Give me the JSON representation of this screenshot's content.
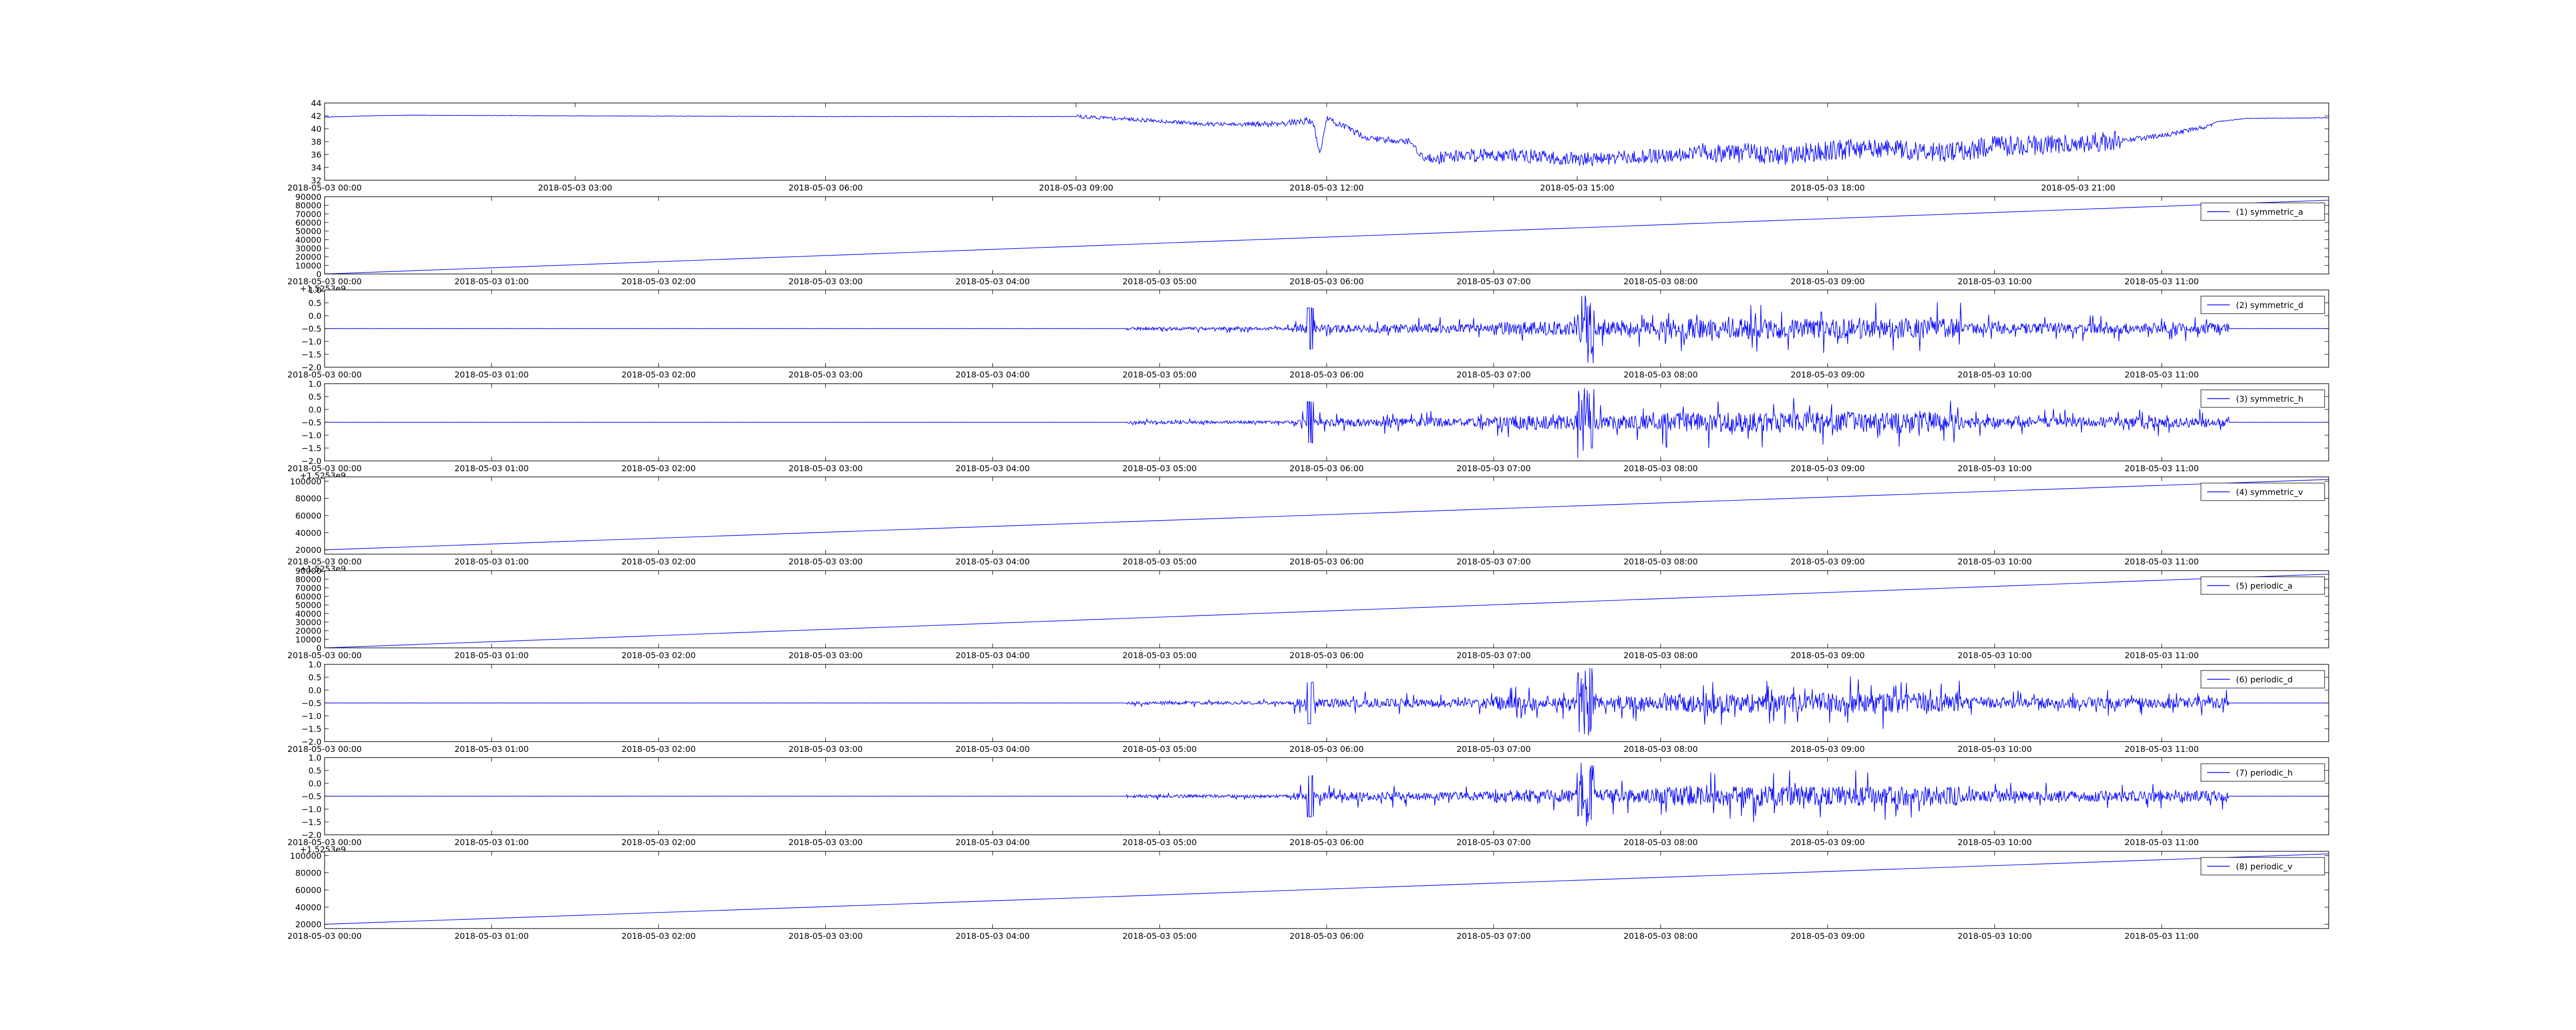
{
  "figure": {
    "line_color": "#0000ff",
    "axes_color": "#000000",
    "background": "#ffffff"
  },
  "chart_data": [
    {
      "type": "line",
      "id": "p0",
      "legend": null,
      "signal": "level",
      "start": 42,
      "end": 42,
      "xlim": [
        "2018-05-03 00:00",
        "2018-05-04 00:00"
      ],
      "ylim": [
        32,
        44
      ],
      "yticks": [
        "32",
        "34",
        "36",
        "38",
        "40",
        "42",
        "44"
      ],
      "xticks": [
        "2018-05-03 00:00",
        "2018-05-03 03:00",
        "2018-05-03 06:00",
        "2018-05-03 09:00",
        "2018-05-03 12:00",
        "2018-05-03 15:00",
        "2018-05-03 18:00",
        "2018-05-03 21:00"
      ],
      "offset_text": "",
      "series": [
        {
          "x": [
            "2018-05-03 00:00",
            "2018-05-03 00:30",
            "2018-05-03 01:00",
            "2018-05-03 03:00",
            "2018-05-03 06:00",
            "2018-05-03 09:00",
            "2018-05-03 09:30",
            "2018-05-03 10:00",
            "2018-05-03 10:30",
            "2018-05-03 11:00",
            "2018-05-03 11:30",
            "2018-05-03 11:50",
            "2018-05-03 11:55",
            "2018-05-03 12:00",
            "2018-05-03 12:30",
            "2018-05-03 13:00",
            "2018-05-03 13:10",
            "2018-05-03 13:30",
            "2018-05-03 14:00",
            "2018-05-03 14:30",
            "2018-05-03 15:00",
            "2018-05-03 15:30",
            "2018-05-03 16:00",
            "2018-05-03 16:30",
            "2018-05-03 17:00",
            "2018-05-03 17:30",
            "2018-05-03 18:00",
            "2018-05-03 18:30",
            "2018-05-03 19:00",
            "2018-05-03 19:30",
            "2018-05-03 20:00",
            "2018-05-03 20:30",
            "2018-05-03 21:00",
            "2018-05-03 21:30",
            "2018-05-03 22:00",
            "2018-05-03 22:30",
            "2018-05-03 22:40",
            "2018-05-03 23:00",
            "2018-05-03 23:59"
          ],
          "y": [
            41.8,
            42.0,
            42.1,
            42.0,
            41.9,
            41.9,
            41.6,
            41.2,
            40.8,
            40.6,
            40.9,
            41.3,
            36.0,
            41.6,
            38.5,
            38.0,
            35.3,
            35.8,
            36.0,
            35.7,
            35.2,
            35.5,
            35.8,
            36.4,
            36.2,
            35.9,
            36.6,
            37.0,
            36.7,
            36.3,
            37.3,
            37.5,
            37.8,
            38.2,
            38.9,
            40.2,
            41.1,
            41.6,
            41.7
          ]
        }
      ]
    },
    {
      "type": "line",
      "id": "p1",
      "legend": "(1) symmetric_a",
      "signal": "ramp",
      "start": 0,
      "end": 86000,
      "xlim": [
        "2018-05-03 00:00",
        "2018-05-03 12:00"
      ],
      "ylim": [
        0,
        90000
      ],
      "yticks": [
        "0",
        "10000",
        "20000",
        "30000",
        "40000",
        "50000",
        "60000",
        "70000",
        "80000",
        "90000"
      ],
      "xticks": [
        "2018-05-03 00:00",
        "2018-05-03 01:00",
        "2018-05-03 02:00",
        "2018-05-03 03:00",
        "2018-05-03 04:00",
        "2018-05-03 05:00",
        "2018-05-03 06:00",
        "2018-05-03 07:00",
        "2018-05-03 08:00",
        "2018-05-03 09:00",
        "2018-05-03 10:00",
        "2018-05-03 11:00"
      ],
      "offset_text": "+1.5253e9",
      "series": [
        {
          "name": "(1) symmetric_a",
          "x": [
            "2018-05-03 00:00",
            "2018-05-03 12:00"
          ],
          "y": [
            0,
            86000
          ]
        }
      ]
    },
    {
      "type": "line",
      "id": "p2",
      "legend": "(2) symmetric_d",
      "signal": "noise",
      "baseline": -0.5,
      "xlim": [
        "2018-05-03 00:00",
        "2018-05-03 12:00"
      ],
      "ylim": [
        -2.0,
        1.0
      ],
      "yticks": [
        "−2.0",
        "−1.5",
        "−1.0",
        "−0.5",
        "0.0",
        "0.5",
        "1.0"
      ],
      "xticks": [
        "2018-05-03 00:00",
        "2018-05-03 01:00",
        "2018-05-03 02:00",
        "2018-05-03 03:00",
        "2018-05-03 04:00",
        "2018-05-03 05:00",
        "2018-05-03 06:00",
        "2018-05-03 07:00",
        "2018-05-03 08:00",
        "2018-05-03 09:00",
        "2018-05-03 10:00",
        "2018-05-03 11:00"
      ],
      "offset_text": "",
      "series": [
        {
          "name": "(2) symmetric_d",
          "x": [
            "2018-05-03 00:00",
            "2018-05-03 04:50",
            "2018-05-03 05:55",
            "2018-05-03 07:30",
            "2018-05-03 09:00",
            "2018-05-03 11:30",
            "2018-05-03 12:00"
          ],
          "y": [
            -0.5,
            -0.5,
            0.3,
            0.9,
            -1.4,
            -0.5,
            -0.5
          ]
        }
      ]
    },
    {
      "type": "line",
      "id": "p3",
      "legend": "(3) symmetric_h",
      "signal": "noise",
      "baseline": -0.5,
      "xlim": [
        "2018-05-03 00:00",
        "2018-05-03 12:00"
      ],
      "ylim": [
        -2.0,
        1.0
      ],
      "yticks": [
        "−2.0",
        "−1.5",
        "−1.0",
        "−0.5",
        "0.0",
        "0.5",
        "1.0"
      ],
      "xticks": [
        "2018-05-03 00:00",
        "2018-05-03 01:00",
        "2018-05-03 02:00",
        "2018-05-03 03:00",
        "2018-05-03 04:00",
        "2018-05-03 05:00",
        "2018-05-03 06:00",
        "2018-05-03 07:00",
        "2018-05-03 08:00",
        "2018-05-03 09:00",
        "2018-05-03 10:00",
        "2018-05-03 11:00"
      ],
      "offset_text": "+1.5253e9",
      "series": [
        {
          "name": "(3) symmetric_h",
          "x": [
            "2018-05-03 00:00",
            "2018-05-03 04:50",
            "2018-05-03 05:55",
            "2018-05-03 07:30",
            "2018-05-03 09:00",
            "2018-05-03 11:30",
            "2018-05-03 12:00"
          ],
          "y": [
            -0.5,
            -0.5,
            0.4,
            0.9,
            -1.3,
            -0.5,
            -0.5
          ]
        }
      ]
    },
    {
      "type": "line",
      "id": "p4",
      "legend": "(4) symmetric_v",
      "signal": "ramp",
      "start": 20000,
      "end": 102000,
      "xlim": [
        "2018-05-03 00:00",
        "2018-05-03 12:00"
      ],
      "ylim": [
        15000,
        105000
      ],
      "yticks": [
        "20000",
        "40000",
        "60000",
        "80000",
        "100000"
      ],
      "xticks": [
        "2018-05-03 00:00",
        "2018-05-03 01:00",
        "2018-05-03 02:00",
        "2018-05-03 03:00",
        "2018-05-03 04:00",
        "2018-05-03 05:00",
        "2018-05-03 06:00",
        "2018-05-03 07:00",
        "2018-05-03 08:00",
        "2018-05-03 09:00",
        "2018-05-03 10:00",
        "2018-05-03 11:00"
      ],
      "offset_text": "+1.5253e9",
      "series": [
        {
          "name": "(4) symmetric_v",
          "x": [
            "2018-05-03 00:00",
            "2018-05-03 12:00"
          ],
          "y": [
            20000,
            102000
          ]
        }
      ]
    },
    {
      "type": "line",
      "id": "p5",
      "legend": "(5) periodic_a",
      "signal": "ramp",
      "start": 0,
      "end": 86000,
      "xlim": [
        "2018-05-03 00:00",
        "2018-05-03 12:00"
      ],
      "ylim": [
        0,
        90000
      ],
      "yticks": [
        "0",
        "10000",
        "20000",
        "30000",
        "40000",
        "50000",
        "60000",
        "70000",
        "80000",
        "90000"
      ],
      "xticks": [
        "2018-05-03 00:00",
        "2018-05-03 01:00",
        "2018-05-03 02:00",
        "2018-05-03 03:00",
        "2018-05-03 04:00",
        "2018-05-03 05:00",
        "2018-05-03 06:00",
        "2018-05-03 07:00",
        "2018-05-03 08:00",
        "2018-05-03 09:00",
        "2018-05-03 10:00",
        "2018-05-03 11:00"
      ],
      "offset_text": "",
      "series": [
        {
          "name": "(5) periodic_a",
          "x": [
            "2018-05-03 00:00",
            "2018-05-03 12:00"
          ],
          "y": [
            0,
            86000
          ]
        }
      ]
    },
    {
      "type": "line",
      "id": "p6",
      "legend": "(6) periodic_d",
      "signal": "noise",
      "baseline": -0.5,
      "xlim": [
        "2018-05-03 00:00",
        "2018-05-03 12:00"
      ],
      "ylim": [
        -2.0,
        1.0
      ],
      "yticks": [
        "−2.0",
        "−1.5",
        "−1.0",
        "−0.5",
        "0.0",
        "0.5",
        "1.0"
      ],
      "xticks": [
        "2018-05-03 00:00",
        "2018-05-03 01:00",
        "2018-05-03 02:00",
        "2018-05-03 03:00",
        "2018-05-03 04:00",
        "2018-05-03 05:00",
        "2018-05-03 06:00",
        "2018-05-03 07:00",
        "2018-05-03 08:00",
        "2018-05-03 09:00",
        "2018-05-03 10:00",
        "2018-05-03 11:00"
      ],
      "offset_text": "",
      "series": [
        {
          "name": "(6) periodic_d",
          "x": [
            "2018-05-03 00:00",
            "2018-05-03 04:50",
            "2018-05-03 05:55",
            "2018-05-03 07:30",
            "2018-05-03 09:00",
            "2018-05-03 11:30",
            "2018-05-03 12:00"
          ],
          "y": [
            -0.5,
            -0.5,
            0.3,
            0.9,
            -1.4,
            -0.5,
            -0.5
          ]
        }
      ]
    },
    {
      "type": "line",
      "id": "p7",
      "legend": "(7) periodic_h",
      "signal": "noise",
      "baseline": -0.5,
      "xlim": [
        "2018-05-03 00:00",
        "2018-05-03 12:00"
      ],
      "ylim": [
        -2.0,
        1.0
      ],
      "yticks": [
        "−2.0",
        "−1.5",
        "−1.0",
        "−0.5",
        "0.0",
        "0.5",
        "1.0"
      ],
      "xticks": [
        "2018-05-03 00:00",
        "2018-05-03 01:00",
        "2018-05-03 02:00",
        "2018-05-03 03:00",
        "2018-05-03 04:00",
        "2018-05-03 05:00",
        "2018-05-03 06:00",
        "2018-05-03 07:00",
        "2018-05-03 08:00",
        "2018-05-03 09:00",
        "2018-05-03 10:00",
        "2018-05-03 11:00"
      ],
      "offset_text": "+1.5253e9",
      "series": [
        {
          "name": "(7) periodic_h",
          "x": [
            "2018-05-03 00:00",
            "2018-05-03 04:50",
            "2018-05-03 05:55",
            "2018-05-03 07:30",
            "2018-05-03 09:00",
            "2018-05-03 11:30",
            "2018-05-03 12:00"
          ],
          "y": [
            -0.5,
            -0.5,
            0.4,
            0.9,
            -1.3,
            -0.5,
            -0.5
          ]
        }
      ]
    },
    {
      "type": "line",
      "id": "p8",
      "legend": "(8) periodic_v",
      "signal": "ramp",
      "start": 20000,
      "end": 102000,
      "xlim": [
        "2018-05-03 00:00",
        "2018-05-03 12:00"
      ],
      "ylim": [
        15000,
        105000
      ],
      "yticks": [
        "20000",
        "40000",
        "60000",
        "80000",
        "100000"
      ],
      "xticks": [
        "2018-05-03 00:00",
        "2018-05-03 01:00",
        "2018-05-03 02:00",
        "2018-05-03 03:00",
        "2018-05-03 04:00",
        "2018-05-03 05:00",
        "2018-05-03 06:00",
        "2018-05-03 07:00",
        "2018-05-03 08:00",
        "2018-05-03 09:00",
        "2018-05-03 10:00",
        "2018-05-03 11:00"
      ],
      "offset_text": "",
      "series": [
        {
          "name": "(8) periodic_v",
          "x": [
            "2018-05-03 00:00",
            "2018-05-03 12:00"
          ],
          "y": [
            20000,
            102000
          ]
        }
      ]
    }
  ]
}
